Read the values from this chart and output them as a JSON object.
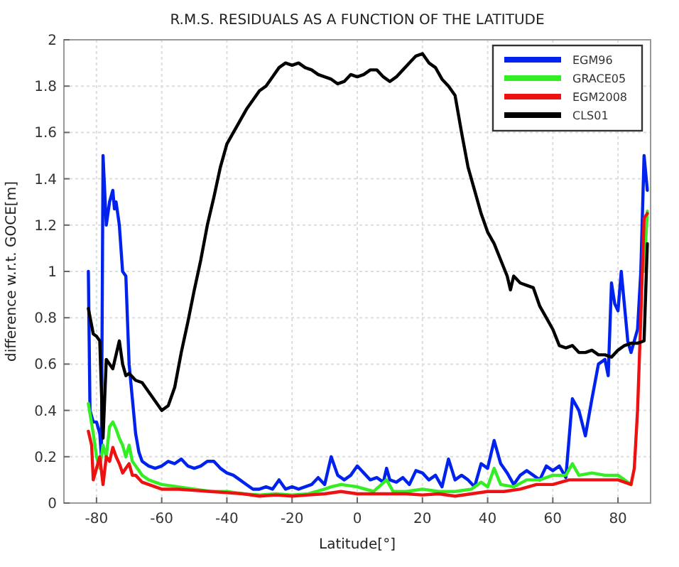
{
  "chart_data": {
    "type": "line",
    "title": "R.M.S. RESIDUALS AS A FUNCTION OF THE LATITUDE",
    "xlabel": "Latitude[°]",
    "ylabel": "difference w.r.t. GOCE[m]",
    "xlim": [
      -90,
      90
    ],
    "xticks": [
      -80,
      -60,
      -40,
      -20,
      0,
      20,
      40,
      60,
      80
    ],
    "ylim": [
      0,
      2
    ],
    "yticks": [
      0,
      0.2,
      0.4,
      0.6,
      0.8,
      1,
      1.2,
      1.4,
      1.6,
      1.8,
      2
    ],
    "grid": true,
    "legend": "top right",
    "marker": "none",
    "line_style": "solid",
    "series": [
      {
        "name": "EGM96",
        "color": "#0022ee",
        "x": [
          -82.5,
          -82,
          -81,
          -80,
          -79,
          -78.5,
          -78,
          -77,
          -76,
          -75,
          -74.5,
          -74,
          -73,
          -72,
          -71,
          -70,
          -69,
          -68,
          -67,
          -66,
          -64,
          -62,
          -60,
          -58,
          -56,
          -54,
          -52,
          -50,
          -48,
          -46,
          -44,
          -42,
          -40,
          -38,
          -36,
          -34,
          -32,
          -30,
          -28,
          -26,
          -24,
          -22,
          -20,
          -18,
          -16,
          -14,
          -12,
          -10,
          -8,
          -6,
          -4,
          -2,
          0,
          2,
          4,
          6,
          8,
          9,
          10,
          12,
          14,
          16,
          18,
          20,
          22,
          24,
          26,
          28,
          30,
          32,
          34,
          36,
          38,
          40,
          42,
          44,
          46,
          48,
          50,
          52,
          54,
          56,
          58,
          60,
          62,
          64,
          66,
          68,
          70,
          72,
          74,
          76,
          77,
          78,
          79,
          80,
          81,
          82,
          83,
          84,
          86,
          87,
          88,
          89
        ],
        "values": [
          1.0,
          0.4,
          0.35,
          0.35,
          0.3,
          0.2,
          1.5,
          1.2,
          1.3,
          1.35,
          1.27,
          1.3,
          1.2,
          1.0,
          0.98,
          0.6,
          0.45,
          0.3,
          0.22,
          0.18,
          0.16,
          0.15,
          0.16,
          0.18,
          0.17,
          0.19,
          0.16,
          0.15,
          0.16,
          0.18,
          0.18,
          0.15,
          0.13,
          0.12,
          0.1,
          0.08,
          0.06,
          0.06,
          0.07,
          0.06,
          0.1,
          0.06,
          0.07,
          0.06,
          0.07,
          0.08,
          0.11,
          0.08,
          0.2,
          0.12,
          0.1,
          0.12,
          0.16,
          0.13,
          0.1,
          0.11,
          0.09,
          0.15,
          0.1,
          0.09,
          0.11,
          0.08,
          0.14,
          0.13,
          0.1,
          0.12,
          0.07,
          0.19,
          0.1,
          0.12,
          0.1,
          0.07,
          0.17,
          0.15,
          0.27,
          0.17,
          0.13,
          0.08,
          0.12,
          0.14,
          0.12,
          0.1,
          0.16,
          0.14,
          0.16,
          0.11,
          0.45,
          0.4,
          0.29,
          0.45,
          0.6,
          0.62,
          0.55,
          0.95,
          0.86,
          0.83,
          1.0,
          0.85,
          0.7,
          0.65,
          0.75,
          1.0,
          1.5,
          1.35
        ]
      },
      {
        "name": "GRACE05",
        "color": "#33ee22",
        "x": [
          -82.5,
          -81,
          -80,
          -79,
          -78,
          -77,
          -76,
          -75,
          -74,
          -73,
          -72,
          -71,
          -70,
          -69,
          -68,
          -66,
          -64,
          -62,
          -60,
          -55,
          -50,
          -45,
          -40,
          -35,
          -30,
          -25,
          -20,
          -15,
          -10,
          -8,
          -5,
          0,
          5,
          9,
          11,
          15,
          20,
          25,
          30,
          35,
          38,
          40,
          42,
          44,
          48,
          52,
          56,
          60,
          64,
          66,
          68,
          72,
          76,
          80,
          82,
          84,
          86,
          88,
          89
        ],
        "values": [
          0.43,
          0.3,
          0.2,
          0.15,
          0.25,
          0.2,
          0.33,
          0.35,
          0.32,
          0.28,
          0.25,
          0.2,
          0.25,
          0.18,
          0.16,
          0.12,
          0.1,
          0.09,
          0.08,
          0.07,
          0.06,
          0.05,
          0.05,
          0.04,
          0.035,
          0.04,
          0.035,
          0.04,
          0.06,
          0.07,
          0.08,
          0.07,
          0.05,
          0.1,
          0.05,
          0.05,
          0.06,
          0.05,
          0.05,
          0.06,
          0.09,
          0.07,
          0.15,
          0.08,
          0.07,
          0.1,
          0.1,
          0.12,
          0.12,
          0.17,
          0.12,
          0.13,
          0.12,
          0.12,
          0.1,
          0.08,
          null,
          1.0,
          1.26
        ]
      },
      {
        "name": "EGM2008",
        "color": "#ee1111",
        "x": [
          -82.5,
          -81.5,
          -81,
          -80,
          -79,
          -78,
          -77,
          -76,
          -75,
          -74,
          -73,
          -72,
          -70,
          -69,
          -68,
          -66,
          -62,
          -60,
          -55,
          -50,
          -45,
          -40,
          -35,
          -30,
          -25,
          -20,
          -15,
          -10,
          -5,
          0,
          5,
          10,
          15,
          20,
          25,
          30,
          35,
          40,
          45,
          50,
          55,
          60,
          65,
          70,
          75,
          80,
          82,
          84,
          85,
          86,
          87,
          88,
          89
        ],
        "values": [
          0.31,
          0.25,
          0.1,
          0.15,
          0.2,
          0.08,
          0.2,
          0.18,
          0.24,
          0.2,
          0.17,
          0.13,
          0.17,
          0.12,
          0.12,
          0.09,
          0.07,
          0.06,
          0.06,
          0.055,
          0.05,
          0.045,
          0.04,
          0.03,
          0.035,
          0.03,
          0.035,
          0.04,
          0.05,
          0.04,
          0.04,
          0.04,
          0.04,
          0.035,
          0.04,
          0.03,
          0.04,
          0.05,
          0.05,
          0.06,
          0.08,
          0.08,
          0.1,
          0.1,
          0.1,
          0.1,
          0.09,
          0.08,
          0.15,
          0.4,
          0.8,
          1.23,
          1.25
        ]
      },
      {
        "name": "CLS01",
        "color": "#000000",
        "x": [
          -82.5,
          -81,
          -80,
          -79,
          -78,
          -77,
          -76,
          -75,
          -74,
          -73,
          -72,
          -71,
          -70,
          -68,
          -66,
          -64,
          -62,
          -60,
          -58,
          -56,
          -54,
          -52,
          -50,
          -48,
          -46,
          -44,
          -42,
          -40,
          -38,
          -36,
          -34,
          -32,
          -30,
          -28,
          -26,
          -24,
          -22,
          -20,
          -18,
          -16,
          -14,
          -12,
          -10,
          -8,
          -6,
          -4,
          -2,
          0,
          2,
          4,
          6,
          8,
          10,
          12,
          14,
          16,
          18,
          20,
          22,
          24,
          26,
          28,
          30,
          32,
          34,
          36,
          38,
          40,
          42,
          44,
          46,
          47,
          48,
          50,
          52,
          54,
          56,
          58,
          60,
          62,
          64,
          66,
          68,
          70,
          72,
          74,
          76,
          78,
          80,
          82,
          84,
          86,
          88,
          89
        ],
        "values": [
          0.84,
          0.73,
          0.72,
          0.7,
          0.28,
          0.62,
          0.6,
          0.58,
          0.64,
          0.7,
          0.6,
          0.55,
          0.56,
          0.53,
          0.52,
          0.48,
          0.44,
          0.4,
          0.42,
          0.5,
          0.65,
          0.78,
          0.92,
          1.05,
          1.2,
          1.32,
          1.45,
          1.55,
          1.6,
          1.65,
          1.7,
          1.74,
          1.78,
          1.8,
          1.84,
          1.88,
          1.9,
          1.89,
          1.9,
          1.88,
          1.87,
          1.85,
          1.84,
          1.83,
          1.81,
          1.82,
          1.85,
          1.84,
          1.85,
          1.87,
          1.87,
          1.84,
          1.82,
          1.84,
          1.87,
          1.9,
          1.93,
          1.94,
          1.9,
          1.88,
          1.83,
          1.8,
          1.76,
          1.6,
          1.45,
          1.35,
          1.25,
          1.17,
          1.12,
          1.05,
          0.98,
          0.92,
          0.98,
          0.95,
          0.94,
          0.93,
          0.85,
          0.8,
          0.75,
          0.68,
          0.67,
          0.68,
          0.65,
          0.65,
          0.66,
          0.64,
          0.64,
          0.63,
          0.66,
          0.68,
          0.69,
          0.69,
          0.7,
          1.12
        ]
      }
    ]
  }
}
